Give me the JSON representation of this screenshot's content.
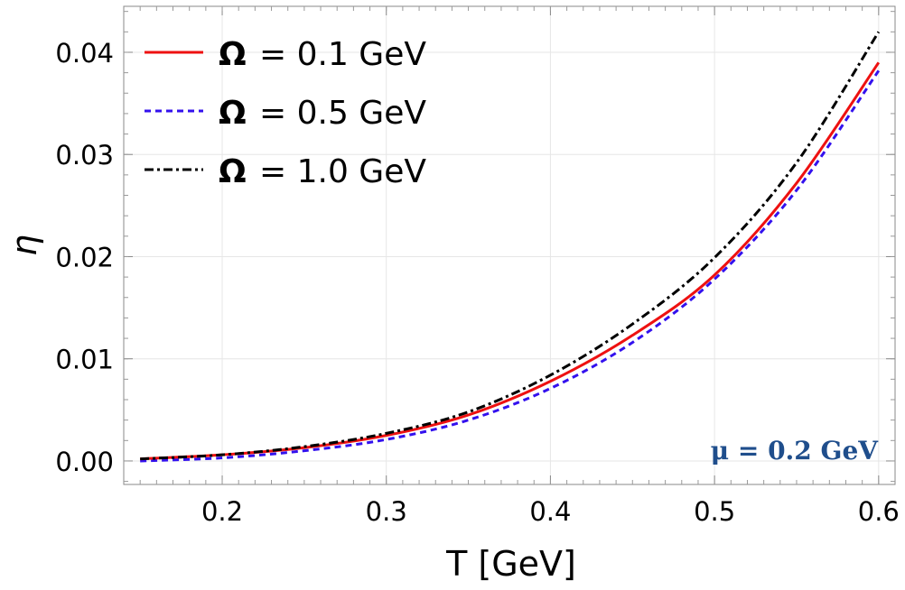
{
  "chart_data": {
    "type": "line",
    "title": "",
    "xlabel": "T [GeV]",
    "ylabel": "η",
    "xlim": [
      0.14,
      0.61
    ],
    "ylim": [
      -0.0023,
      0.0445
    ],
    "xticks": [
      0.2,
      0.3,
      0.4,
      0.5,
      0.6
    ],
    "xtick_labels": [
      "0.2",
      "0.3",
      "0.4",
      "0.5",
      "0.6"
    ],
    "yticks": [
      0.0,
      0.01,
      0.02,
      0.03,
      0.04
    ],
    "ytick_labels": [
      "0.00",
      "0.01",
      "0.02",
      "0.03",
      "0.04"
    ],
    "grid": true,
    "legend_position": "top-left",
    "annotation": {
      "text": "μ = 0.2 GeV",
      "color": "#1f4e8c"
    },
    "series": [
      {
        "name": "Ω = 0.1 GeV",
        "label_symbol": "Ω",
        "label_rest": "= 0.1 GeV",
        "color": "#ee1111",
        "style": "solid",
        "x": [
          0.15,
          0.2,
          0.25,
          0.3,
          0.35,
          0.4,
          0.45,
          0.5,
          0.55,
          0.6
        ],
        "y": [
          0.0002,
          0.0006,
          0.0013,
          0.0025,
          0.0045,
          0.0078,
          0.0123,
          0.0182,
          0.0272,
          0.039
        ]
      },
      {
        "name": "Ω = 0.5 GeV",
        "label_symbol": "Ω",
        "label_rest": "= 0.5 GeV",
        "color": "#3311ee",
        "style": "dashed",
        "x": [
          0.15,
          0.2,
          0.25,
          0.3,
          0.35,
          0.4,
          0.45,
          0.5,
          0.55,
          0.6
        ],
        "y": [
          0.0,
          0.0003,
          0.001,
          0.0021,
          0.004,
          0.0071,
          0.0116,
          0.0178,
          0.0265,
          0.0382
        ]
      },
      {
        "name": "Ω = 1.0 GeV",
        "label_symbol": "Ω",
        "label_rest": "= 1.0 GeV",
        "color": "#000000",
        "style": "dashdot",
        "x": [
          0.15,
          0.2,
          0.25,
          0.3,
          0.35,
          0.4,
          0.45,
          0.5,
          0.55,
          0.6
        ],
        "y": [
          0.0002,
          0.0006,
          0.0014,
          0.0027,
          0.0048,
          0.0084,
          0.0134,
          0.0199,
          0.0292,
          0.042
        ]
      }
    ]
  }
}
